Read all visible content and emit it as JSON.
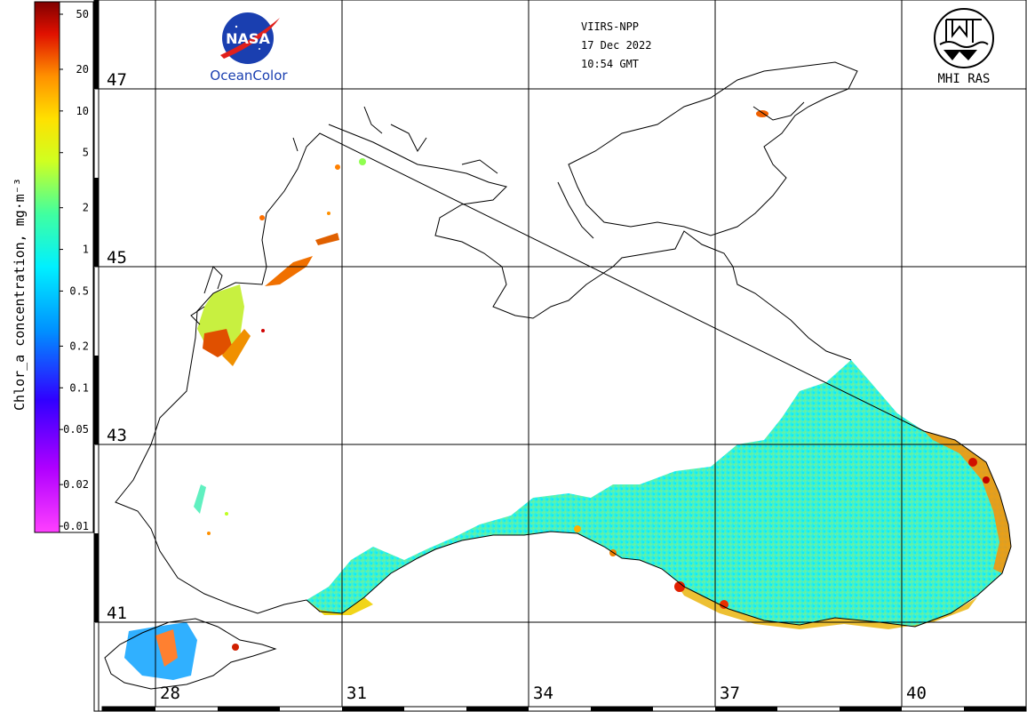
{
  "colorbar": {
    "label": "Chlor_a concentration, mg·m⁻³",
    "ticks": [
      "50",
      "20",
      "10",
      "5",
      "2",
      "1",
      "0.5",
      "0.2",
      "0.1",
      "0.05",
      "0.02",
      "0.01"
    ],
    "colors": [
      "#ff40ff",
      "#a000ff",
      "#3000ff",
      "#0090ff",
      "#00f0ff",
      "#60ff60",
      "#ffff00",
      "#ff8000",
      "#e00000",
      "#800000"
    ]
  },
  "header": {
    "sensor": "VIIRS-NPP",
    "date": "17 Dec 2022",
    "time": "10:54 GMT",
    "left_logo_text": "NASA",
    "left_logo_caption": "OceanColor",
    "right_logo_caption": "MHI RAS"
  },
  "map": {
    "lat_labels": [
      "47",
      "45",
      "43",
      "41"
    ],
    "lon_labels": [
      "28",
      "31",
      "34",
      "37",
      "40"
    ],
    "coast_color": "#000000",
    "grid_color": "#000000"
  }
}
